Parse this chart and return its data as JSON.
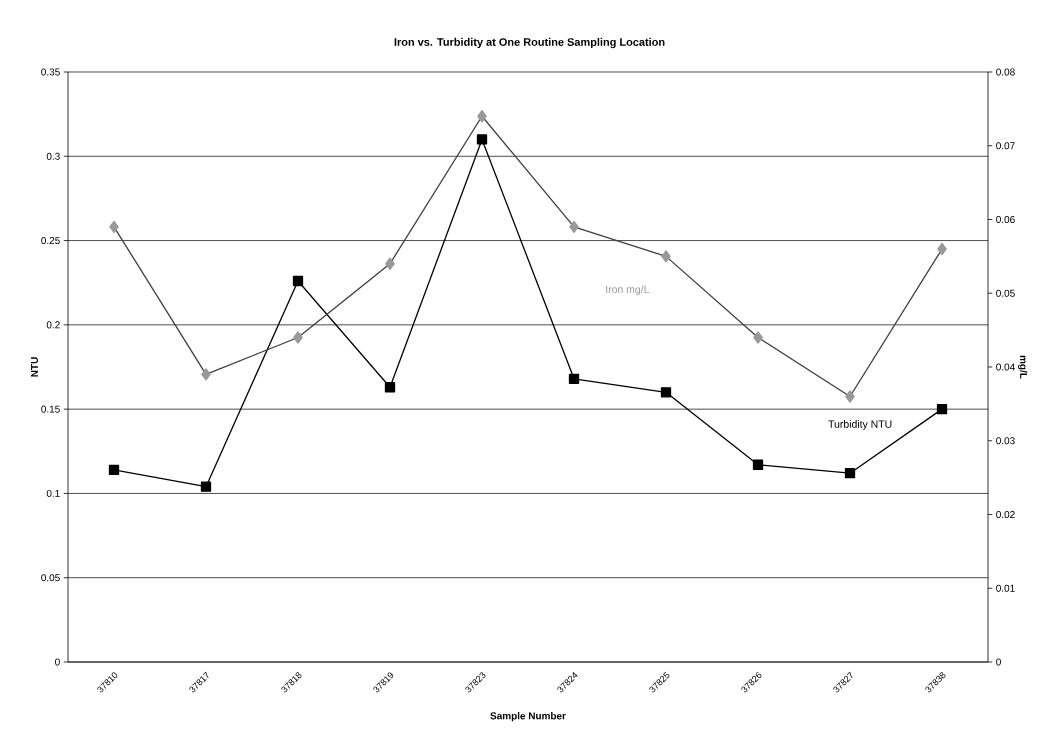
{
  "chart_data": {
    "type": "line",
    "title": "Iron vs. Turbidity at One Routine Sampling Location",
    "xlabel": "Sample Number",
    "ylabel": "NTU",
    "y2label": "mg/L",
    "categories": [
      "37810",
      "37817",
      "37818",
      "37819",
      "37823",
      "37824",
      "37825",
      "37826",
      "37827",
      "37838"
    ],
    "series": [
      {
        "name": "Turbidity NTU",
        "color": "#000000",
        "marker": "square",
        "values": [
          0.114,
          0.104,
          0.226,
          0.163,
          0.31,
          0.168,
          0.16,
          0.117,
          0.112,
          0.15
        ]
      },
      {
        "name": "Iron mg/L",
        "color": "#999999",
        "marker": "diamond",
        "axis": "y2",
        "values": [
          0.059,
          0.039,
          0.044,
          0.054,
          0.074,
          0.059,
          0.055,
          0.044,
          0.036,
          0.056
        ]
      }
    ],
    "ylim": [
      0,
      0.35
    ],
    "yticks": [
      0,
      0.05,
      0.1,
      0.15,
      0.2,
      0.25,
      0.3,
      0.35
    ],
    "y2lim": [
      0,
      0.08
    ],
    "y2ticks": [
      0,
      0.01,
      0.02,
      0.03,
      0.04,
      0.05,
      0.06,
      0.07,
      0.08
    ],
    "grid": "y",
    "line_style": "solid"
  }
}
